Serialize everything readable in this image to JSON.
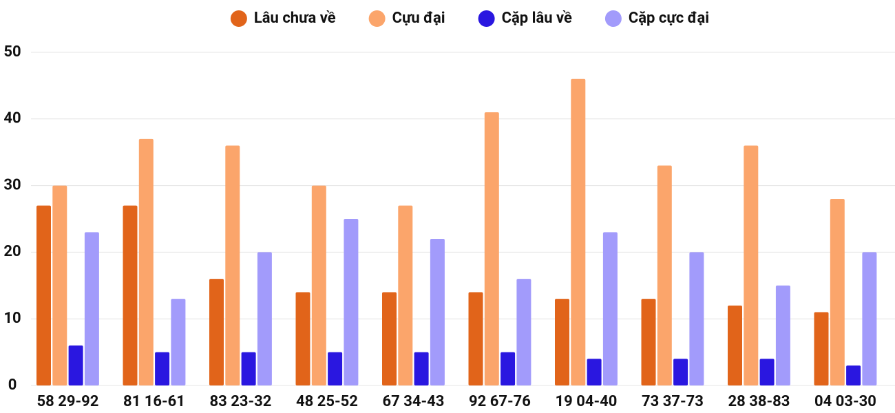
{
  "chart_data": {
    "type": "bar",
    "categories": [
      "58 29-92",
      "81 16-61",
      "83 23-32",
      "48 25-52",
      "67 34-43",
      "92 67-76",
      "19 04-40",
      "73 37-73",
      "28 38-83",
      "04 03-30"
    ],
    "series": [
      {
        "name": "Lâu chưa về",
        "color": "#e1641a",
        "values": [
          27,
          27,
          16,
          14,
          14,
          14,
          13,
          13,
          12,
          11
        ]
      },
      {
        "name": "Cựu đại",
        "color": "#fba56b",
        "values": [
          30,
          37,
          36,
          30,
          27,
          41,
          46,
          33,
          36,
          28
        ]
      },
      {
        "name": "Cặp lâu về",
        "color": "#2a17e0",
        "values": [
          6,
          5,
          5,
          5,
          5,
          5,
          4,
          4,
          4,
          3
        ]
      },
      {
        "name": "Cặp cực đại",
        "color": "#a29bfb",
        "values": [
          23,
          13,
          20,
          25,
          22,
          16,
          23,
          20,
          15,
          20
        ]
      }
    ],
    "ylim": [
      0,
      50
    ],
    "yticks": [
      0,
      10,
      20,
      30,
      40,
      50
    ],
    "grid": true,
    "legend": "top"
  }
}
